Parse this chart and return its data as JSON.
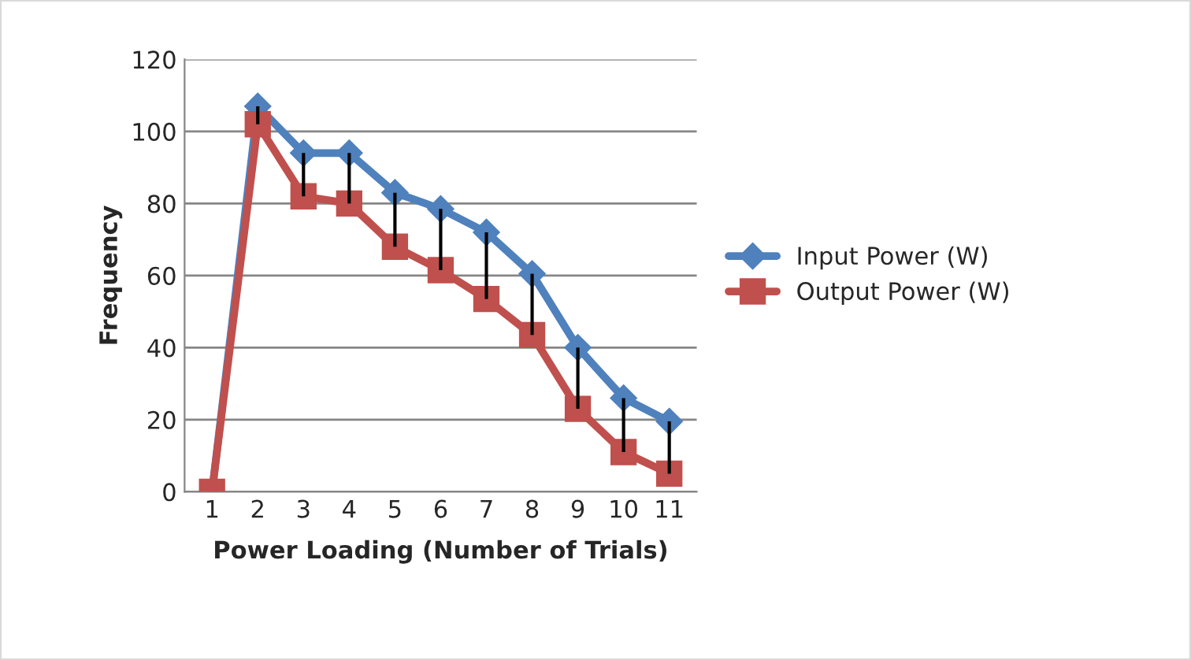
{
  "chart_data": {
    "type": "line",
    "xlabel": "Power Loading (Number of Trials)",
    "ylabel": "Frequency",
    "categories": [
      "1",
      "2",
      "3",
      "4",
      "5",
      "6",
      "7",
      "8",
      "9",
      "10",
      "11"
    ],
    "series": [
      {
        "name": "Input Power (W)",
        "color": "#4f81bd",
        "marker": "diamond",
        "values": [
          0,
          107,
          94,
          94,
          83,
          78.5,
          72,
          60.5,
          40,
          26,
          19.5
        ]
      },
      {
        "name": "Output Power (W)",
        "color": "#c0504d",
        "marker": "square",
        "values": [
          0,
          102,
          82,
          80,
          68,
          61.5,
          53.5,
          43.5,
          23,
          11,
          5
        ],
        "errors": [
          null,
          [
            102,
            107
          ],
          [
            82,
            94
          ],
          [
            80,
            94
          ],
          [
            68,
            83
          ],
          [
            61.5,
            78.5
          ],
          [
            53.5,
            72
          ],
          [
            43.5,
            60.5
          ],
          [
            23,
            40
          ],
          [
            11,
            26
          ],
          [
            5,
            19.5
          ]
        ]
      }
    ],
    "ylim": [
      0,
      120
    ],
    "yticks": [
      0,
      20,
      40,
      60,
      80,
      100,
      120
    ],
    "grid": "y",
    "legend": "right",
    "line_style": "solid"
  }
}
